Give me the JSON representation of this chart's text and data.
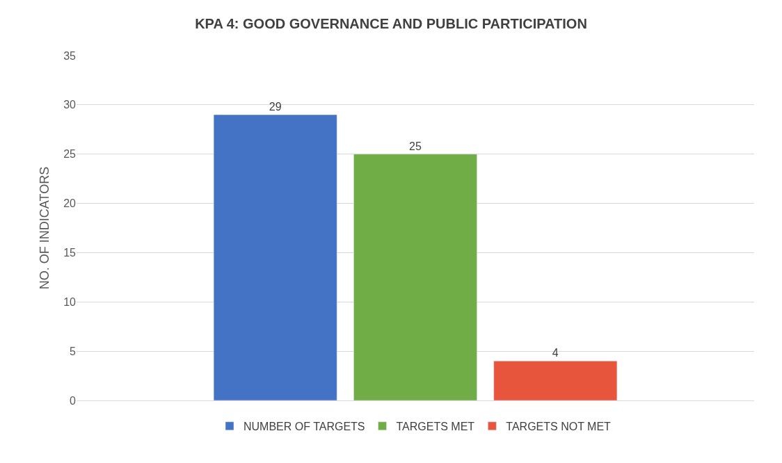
{
  "chart_data": {
    "type": "bar",
    "title": "KPA 4: GOOD GOVERNANCE AND PUBLIC PARTICIPATION",
    "ylabel": "NO. OF INDICATORS",
    "categories": [
      null
    ],
    "series": [
      {
        "name": "NUMBER OF TARGETS",
        "color": "#4472c4",
        "values": [
          29
        ]
      },
      {
        "name": "TARGETS MET",
        "color": "#70ad47",
        "values": [
          25
        ]
      },
      {
        "name": "TARGETS NOT MET",
        "color": "#e8553d",
        "values": [
          4
        ]
      }
    ],
    "ylim": [
      0,
      35
    ],
    "yticks": [
      0,
      5,
      10,
      15,
      20,
      25,
      30,
      35
    ],
    "grid": "y",
    "legend": "bottom",
    "data_labels": true
  }
}
